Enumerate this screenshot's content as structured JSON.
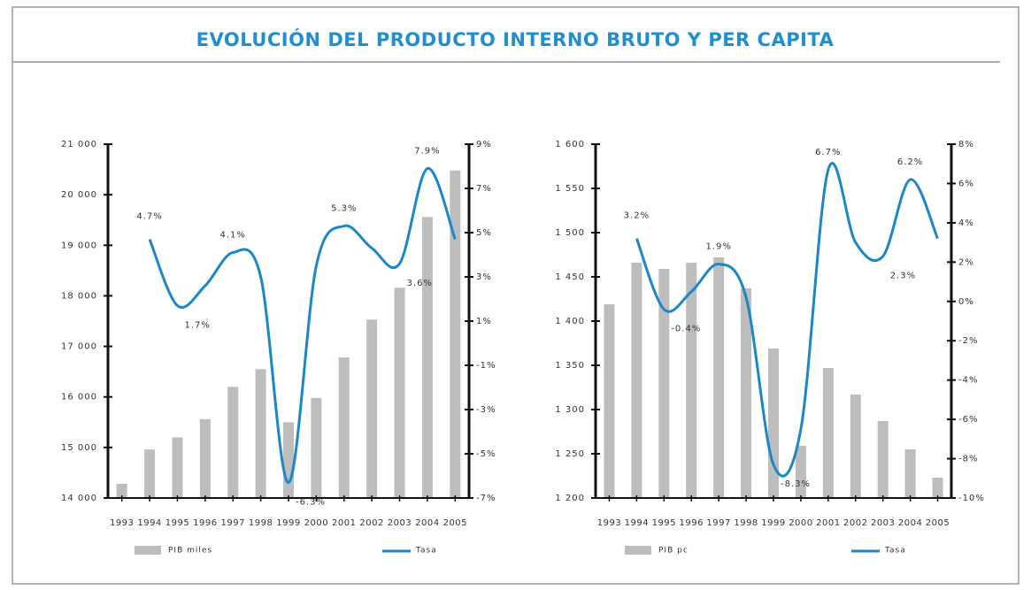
{
  "title": "EVOLUCIÓN DEL PRODUCTO INTERNO BRUTO Y PER CAPITA",
  "chart_data": [
    {
      "type": "combo",
      "categories": [
        "1993",
        "1994",
        "1995",
        "1996",
        "1997",
        "1998",
        "1999",
        "2000",
        "2001",
        "2002",
        "2003",
        "2004",
        "2005"
      ],
      "series": [
        {
          "name": "PIB miles",
          "type": "bar",
          "color": "#bdbdbd",
          "values": [
            14280,
            14960,
            15200,
            15560,
            16200,
            16550,
            15500,
            15980,
            16780,
            17530,
            18160,
            19560,
            20480
          ]
        },
        {
          "name": "Tasa",
          "type": "line",
          "axis": "y2",
          "color": "#1a87c9",
          "values": [
            null,
            4.7,
            1.7,
            2.6,
            4.1,
            3.0,
            -6.3,
            3.5,
            5.3,
            4.3,
            3.6,
            7.9,
            4.7
          ],
          "value_labels": [
            null,
            "4.7%",
            "1.7%",
            null,
            "4.1%",
            null,
            "-6.3%",
            null,
            "5.3%",
            null,
            "3.6%",
            "7.9%",
            null
          ]
        }
      ],
      "ylim": [
        14000,
        21000
      ],
      "yticks": [
        {
          "value": 14000,
          "label": "14 000"
        },
        {
          "value": 15000,
          "label": "15 000"
        },
        {
          "value": 16000,
          "label": "16 000"
        },
        {
          "value": 17000,
          "label": "17 000"
        },
        {
          "value": 18000,
          "label": "18 000"
        },
        {
          "value": 19000,
          "label": "19 000"
        },
        {
          "value": 20000,
          "label": "20 000"
        },
        {
          "value": 21000,
          "label": "21 000"
        }
      ],
      "y2lim": [
        -7,
        9
      ],
      "y2ticks": [
        {
          "value": -7,
          "label": "-7%"
        },
        {
          "value": -5,
          "label": "-5%"
        },
        {
          "value": -3,
          "label": "-3%"
        },
        {
          "value": -1,
          "label": "-1%"
        },
        {
          "value": 1,
          "label": "1%"
        },
        {
          "value": 3,
          "label": "3%"
        },
        {
          "value": 5,
          "label": "5%"
        },
        {
          "value": 7,
          "label": "7%"
        },
        {
          "value": 9,
          "label": "9%"
        }
      ]
    },
    {
      "type": "combo",
      "categories": [
        "1993",
        "1994",
        "1995",
        "1996",
        "1997",
        "1998",
        "1999",
        "2000",
        "2001",
        "2002",
        "2003",
        "2004",
        "2005"
      ],
      "series": [
        {
          "name": "PIB pc",
          "type": "bar",
          "color": "#bdbdbd",
          "values": [
            1419,
            1466,
            1459,
            1466,
            1472,
            1437,
            1369,
            1259,
            1347,
            1317,
            1287,
            1255,
            1223
          ]
        },
        {
          "name": "Tasa",
          "type": "line",
          "axis": "y2",
          "color": "#1a87c9",
          "values": [
            null,
            3.2,
            -0.4,
            0.5,
            1.9,
            0.2,
            -8.3,
            -6.5,
            6.7,
            3.0,
            2.3,
            6.2,
            3.2
          ],
          "value_labels": [
            null,
            "3.2%",
            "-0.4%",
            null,
            "1.9%",
            null,
            "-8.3%",
            null,
            "6.7%",
            null,
            "2.3%",
            "6.2%",
            null
          ]
        }
      ],
      "ylim": [
        1200,
        1600
      ],
      "yticks": [
        {
          "value": 1200,
          "label": "1 200"
        },
        {
          "value": 1250,
          "label": "1 250"
        },
        {
          "value": 1300,
          "label": "1 300"
        },
        {
          "value": 1350,
          "label": "1 350"
        },
        {
          "value": 1400,
          "label": "1 400"
        },
        {
          "value": 1450,
          "label": "1 450"
        },
        {
          "value": 1500,
          "label": "1 500"
        },
        {
          "value": 1550,
          "label": "1 550"
        },
        {
          "value": 1600,
          "label": "1 600"
        }
      ],
      "y2lim": [
        -10,
        8
      ],
      "y2ticks": [
        {
          "value": -10,
          "label": "-10%"
        },
        {
          "value": -8,
          "label": "-8%"
        },
        {
          "value": -6,
          "label": "-6%"
        },
        {
          "value": -4,
          "label": "-4%"
        },
        {
          "value": -2,
          "label": "-2%"
        },
        {
          "value": 0,
          "label": "0%"
        },
        {
          "value": 2,
          "label": "2%"
        },
        {
          "value": 4,
          "label": "4%"
        },
        {
          "value": 6,
          "label": "6%"
        },
        {
          "value": 8,
          "label": "8%"
        }
      ]
    }
  ]
}
